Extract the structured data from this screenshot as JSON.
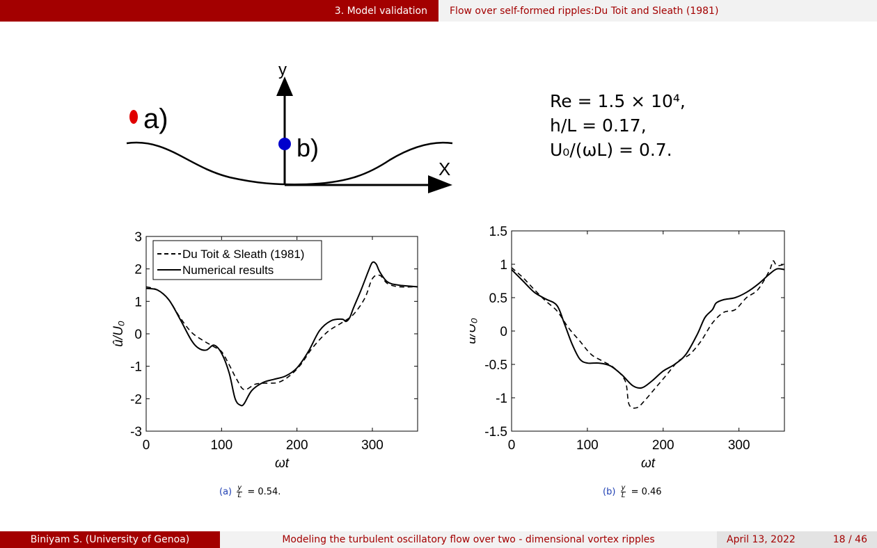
{
  "header": {
    "section": "3. Model validation",
    "subsection": "Flow over self-formed ripples:Du Toit and Sleath (1981)"
  },
  "footer": {
    "author": "Biniyam S.  (University of Genoa)",
    "title": "Modeling the turbulent oscillatory flow over two - dimensional vortex ripples",
    "date": "April 13, 2022",
    "page": "18 / 46"
  },
  "diagram": {
    "label_y": "y",
    "label_x": "X",
    "label_a": "a)",
    "label_b": "b)",
    "color_a": "#e00000",
    "color_b": "#0000cc"
  },
  "params": {
    "line1": "Re = 1.5 × 10⁴,",
    "line2": "h/L = 0.17,",
    "line3": "U₀/(ωL) = 0.7."
  },
  "chart_data": [
    {
      "type": "line",
      "xlabel": "ωt",
      "ylabel": "û/U₀",
      "xlim": [
        0,
        360
      ],
      "ylim": [
        -3,
        3
      ],
      "xticks": [
        0,
        100,
        200,
        300
      ],
      "yticks": [
        -3,
        -2,
        -1,
        0,
        1,
        2,
        3
      ],
      "xtick_labels": [
        "0",
        "100",
        "200",
        "300"
      ],
      "ytick_labels": [
        "-3",
        "-2",
        "-1",
        "0",
        "1",
        "2",
        "3"
      ],
      "legend": "top-left",
      "grid": false,
      "caption_label": "(a)",
      "caption_value": "= 0.54.",
      "frac_num": "y",
      "frac_den": "L",
      "series": [
        {
          "name": "Du Toit & Sleath (1981)",
          "style": "dashed",
          "x": [
            0,
            15,
            30,
            45,
            60,
            75,
            90,
            100,
            110,
            120,
            130,
            145,
            160,
            175,
            190,
            205,
            220,
            240,
            260,
            275,
            290,
            300,
            310,
            320,
            335,
            360
          ],
          "y": [
            1.45,
            1.35,
            1.05,
            0.5,
            0.05,
            -0.2,
            -0.4,
            -0.55,
            -0.95,
            -1.4,
            -1.72,
            -1.55,
            -1.52,
            -1.5,
            -1.3,
            -0.95,
            -0.45,
            0.05,
            0.35,
            0.6,
            1.1,
            1.7,
            1.8,
            1.55,
            1.45,
            1.45
          ]
        },
        {
          "name": "Numerical results",
          "style": "solid",
          "x": [
            0,
            15,
            30,
            45,
            60,
            70,
            80,
            90,
            100,
            110,
            118,
            125,
            130,
            140,
            155,
            170,
            185,
            200,
            215,
            230,
            245,
            260,
            265,
            270,
            275,
            285,
            295,
            300,
            305,
            310,
            320,
            335,
            360
          ],
          "y": [
            1.4,
            1.35,
            1.05,
            0.45,
            -0.2,
            -0.45,
            -0.5,
            -0.35,
            -0.6,
            -1.2,
            -2.0,
            -2.2,
            -2.15,
            -1.75,
            -1.5,
            -1.4,
            -1.3,
            -1.05,
            -0.55,
            0.1,
            0.4,
            0.45,
            0.38,
            0.5,
            0.8,
            1.35,
            1.95,
            2.2,
            2.15,
            1.9,
            1.6,
            1.5,
            1.45
          ]
        }
      ]
    },
    {
      "type": "line",
      "xlabel": "ωt",
      "ylabel": "û/U₀",
      "xlim": [
        0,
        360
      ],
      "ylim": [
        -1.5,
        1.5
      ],
      "xticks": [
        0,
        100,
        200,
        300
      ],
      "yticks": [
        -1.5,
        -1,
        -0.5,
        0,
        0.5,
        1,
        1.5
      ],
      "xtick_labels": [
        "0",
        "100",
        "200",
        "300"
      ],
      "ytick_labels": [
        "-1.5",
        "-1",
        "-0.5",
        "0",
        "0.5",
        "1",
        "1.5"
      ],
      "grid": false,
      "caption_label": "(b)",
      "caption_value": "= 0.46",
      "frac_num": "y",
      "frac_den": "L",
      "series": [
        {
          "name": "Du Toit & Sleath (1981)",
          "style": "dashed",
          "x": [
            0,
            15,
            30,
            45,
            60,
            75,
            90,
            105,
            120,
            135,
            150,
            155,
            165,
            175,
            190,
            205,
            220,
            235,
            250,
            265,
            280,
            295,
            310,
            325,
            340,
            345,
            350,
            360
          ],
          "y": [
            0.95,
            0.8,
            0.62,
            0.45,
            0.3,
            0.05,
            -0.15,
            -0.35,
            -0.45,
            -0.55,
            -0.75,
            -1.1,
            -1.15,
            -1.05,
            -0.85,
            -0.65,
            -0.45,
            -0.35,
            -0.15,
            0.12,
            0.28,
            0.32,
            0.5,
            0.62,
            0.9,
            1.05,
            0.98,
            1.0
          ]
        },
        {
          "name": "Numerical results",
          "style": "solid",
          "x": [
            0,
            15,
            30,
            45,
            60,
            70,
            80,
            90,
            100,
            115,
            130,
            145,
            160,
            172,
            185,
            200,
            215,
            230,
            245,
            255,
            265,
            270,
            280,
            295,
            310,
            325,
            340,
            350,
            360
          ],
          "y": [
            0.92,
            0.75,
            0.58,
            0.48,
            0.38,
            0.1,
            -0.2,
            -0.42,
            -0.48,
            -0.48,
            -0.52,
            -0.65,
            -0.82,
            -0.85,
            -0.75,
            -0.6,
            -0.5,
            -0.35,
            -0.05,
            0.2,
            0.32,
            0.42,
            0.47,
            0.5,
            0.58,
            0.7,
            0.85,
            0.93,
            0.92
          ]
        }
      ]
    }
  ]
}
